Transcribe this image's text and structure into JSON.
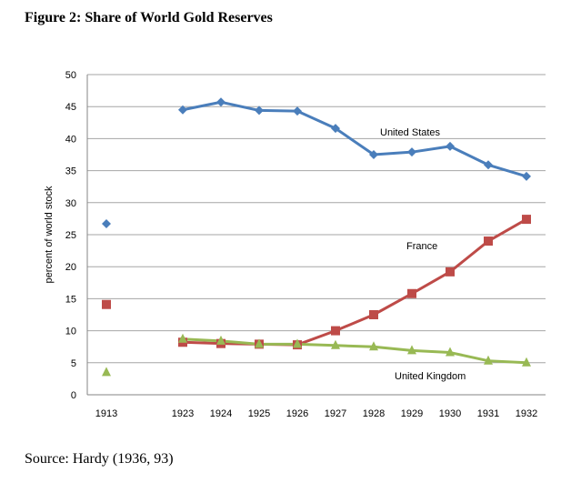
{
  "chart_data": {
    "type": "line",
    "title": "Figure 2: Share of World Gold Reserves",
    "xlabel": "",
    "ylabel": "percent of world stock",
    "ylim": [
      0,
      50
    ],
    "yticks": [
      0,
      5,
      10,
      15,
      20,
      25,
      30,
      35,
      40,
      45,
      50
    ],
    "grid": true,
    "categories": [
      "1913",
      "",
      "1923",
      "1924",
      "1925",
      "1926",
      "1927",
      "1928",
      "1929",
      "1930",
      "1931",
      "1932"
    ],
    "series": [
      {
        "name": "United States",
        "color": "#4a7ebb",
        "marker": "diamond",
        "values": [
          26.7,
          null,
          44.5,
          45.7,
          44.4,
          44.3,
          41.6,
          37.5,
          37.9,
          38.8,
          35.9,
          34.1
        ]
      },
      {
        "name": "France",
        "color": "#be4b48",
        "marker": "square",
        "values": [
          14.1,
          null,
          8.2,
          8.0,
          7.9,
          7.8,
          10.0,
          12.5,
          15.8,
          19.2,
          24.0,
          27.4
        ]
      },
      {
        "name": "United Kingdom",
        "color": "#98b954",
        "marker": "triangle",
        "values": [
          3.5,
          null,
          8.7,
          8.4,
          7.9,
          7.9,
          7.7,
          7.5,
          6.9,
          6.6,
          5.3,
          5.0
        ]
      }
    ],
    "source": "Source:  Hardy (1936, 93)"
  }
}
